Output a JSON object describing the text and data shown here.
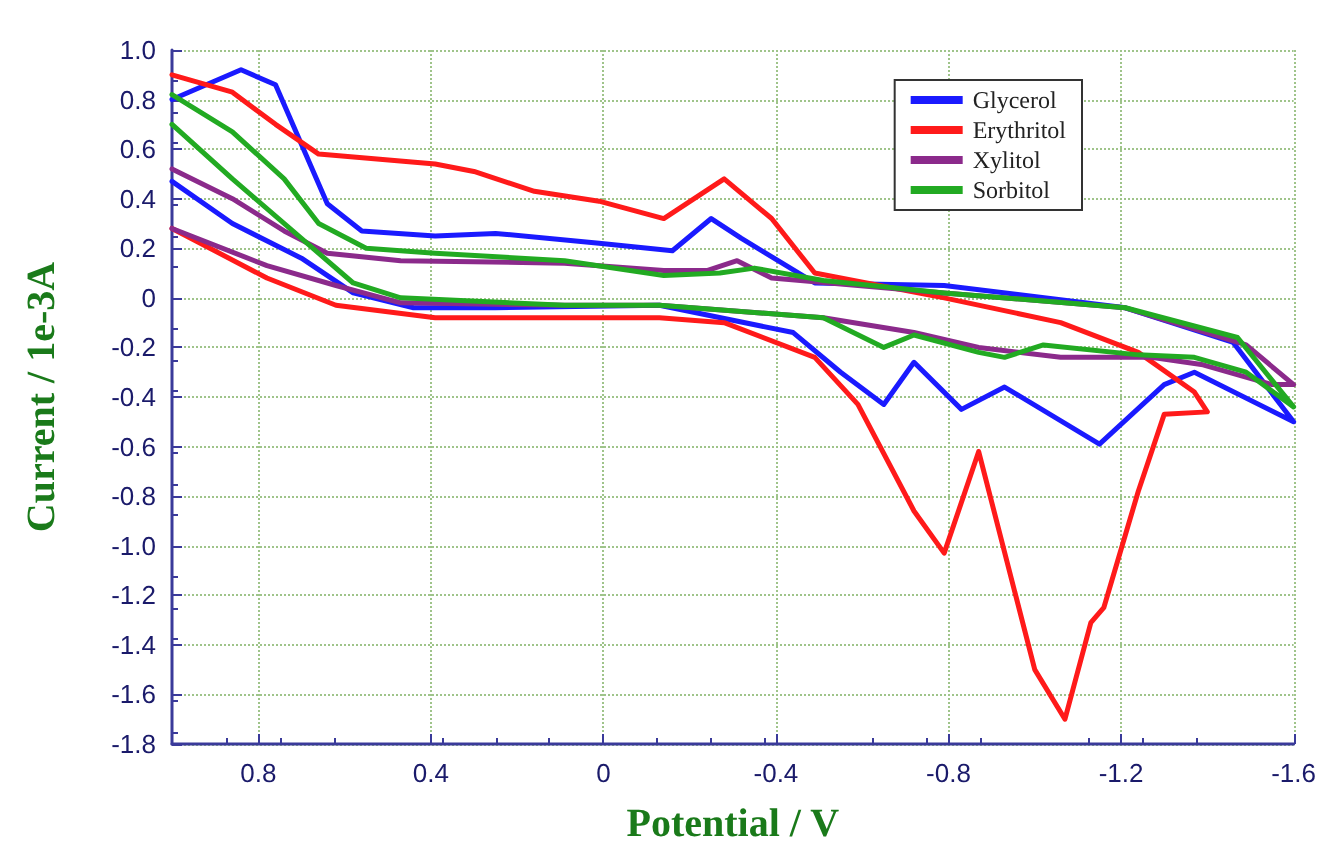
{
  "chart_data": {
    "type": "line",
    "xlabel": "Potential / V",
    "ylabel": "Current / 1e-3A",
    "xlim": [
      1.0,
      -1.6
    ],
    "xticks": [
      0.8,
      0.4,
      0,
      -0.4,
      -0.8,
      -1.2,
      -1.6
    ],
    "ylim": [
      -1.8,
      1.0
    ],
    "yticks": [
      {
        "value": -1.8,
        "label": "-1.8"
      },
      {
        "value": -1.6,
        "label": "-1.6"
      },
      {
        "value": -1.4,
        "label": "-1.4"
      },
      {
        "value": -1.2,
        "label": "-1.2"
      },
      {
        "value": -1.0,
        "label": "-1.0"
      },
      {
        "value": -0.8,
        "label": "-0.8"
      },
      {
        "value": -0.6,
        "label": "-0.6"
      },
      {
        "value": -0.4,
        "label": "-0.4"
      },
      {
        "value": -0.2,
        "label": "-0.2"
      },
      {
        "value": 0,
        "label": "0"
      },
      {
        "value": 0.2,
        "label": "0.2"
      },
      {
        "value": 0.4,
        "label": "0.4"
      },
      {
        "value": 0.6,
        "label": "0.6"
      },
      {
        "value": 0.8,
        "label": "0.8"
      },
      {
        "value": 1.0,
        "label": "1.0"
      }
    ],
    "grid": true,
    "legend": "top right",
    "marker": "none",
    "line_style": "solid",
    "series": [
      {
        "name": "Glycerol",
        "color": "#1a1aff",
        "x": [
          1.0,
          0.84,
          0.76,
          0.7,
          0.64,
          0.56,
          0.39,
          0.25,
          0.01,
          -0.16,
          -0.25,
          -0.32,
          -0.49,
          -0.79,
          -1.21,
          -1.46,
          -1.6,
          -1.37,
          -1.3,
          -1.15,
          -0.93,
          -0.83,
          -0.72,
          -0.65,
          -0.55,
          -0.44,
          -0.13,
          0.25,
          0.44,
          0.58,
          0.7,
          0.86,
          1.0
        ],
        "values": [
          0.8,
          0.92,
          0.86,
          0.62,
          0.38,
          0.27,
          0.25,
          0.26,
          0.22,
          0.19,
          0.32,
          0.24,
          0.06,
          0.05,
          -0.04,
          -0.18,
          -0.5,
          -0.3,
          -0.35,
          -0.59,
          -0.36,
          -0.45,
          -0.26,
          -0.43,
          -0.3,
          -0.14,
          -0.03,
          -0.04,
          -0.04,
          0.02,
          0.16,
          0.3,
          0.47
        ]
      },
      {
        "name": "Erythritol",
        "color": "#ff1a1a",
        "x": [
          1.0,
          0.86,
          0.76,
          0.66,
          0.39,
          0.3,
          0.16,
          0.01,
          -0.14,
          -0.28,
          -0.39,
          -0.49,
          -0.79,
          -1.06,
          -1.24,
          -1.37,
          -1.4,
          -1.3,
          -1.24,
          -1.16,
          -1.13,
          -1.07,
          -1.0,
          -0.87,
          -0.79,
          -0.72,
          -0.59,
          -0.49,
          -0.28,
          -0.13,
          0.0,
          0.39,
          0.62,
          0.78,
          1.0
        ],
        "values": [
          0.9,
          0.83,
          0.7,
          0.58,
          0.54,
          0.51,
          0.43,
          0.39,
          0.32,
          0.48,
          0.32,
          0.1,
          0.0,
          -0.1,
          -0.22,
          -0.38,
          -0.46,
          -0.47,
          -0.78,
          -1.25,
          -1.31,
          -1.7,
          -1.5,
          -0.62,
          -1.03,
          -0.86,
          -0.43,
          -0.24,
          -0.1,
          -0.08,
          -0.08,
          -0.08,
          -0.03,
          0.08,
          0.28
        ]
      },
      {
        "name": "Xylitol",
        "color": "#8b2a8b",
        "x": [
          1.0,
          0.86,
          0.74,
          0.64,
          0.47,
          0.09,
          -0.14,
          -0.24,
          -0.31,
          -0.39,
          -0.79,
          -1.21,
          -1.49,
          -1.6,
          -1.55,
          -1.39,
          -1.27,
          -1.06,
          -0.87,
          -0.72,
          -0.51,
          -0.13,
          0.09,
          0.47,
          0.62,
          0.78,
          1.0
        ],
        "values": [
          0.52,
          0.4,
          0.27,
          0.18,
          0.15,
          0.14,
          0.11,
          0.11,
          0.15,
          0.08,
          0.02,
          -0.04,
          -0.19,
          -0.35,
          -0.35,
          -0.27,
          -0.24,
          -0.24,
          -0.2,
          -0.14,
          -0.08,
          -0.03,
          -0.03,
          -0.02,
          0.05,
          0.13,
          0.28
        ]
      },
      {
        "name": "Sorbitol",
        "color": "#22aa22",
        "x": [
          1.0,
          0.86,
          0.74,
          0.66,
          0.55,
          0.39,
          0.09,
          -0.14,
          -0.27,
          -0.35,
          -0.51,
          -0.79,
          -1.21,
          -1.47,
          -1.6,
          -1.49,
          -1.37,
          -1.24,
          -1.02,
          -0.93,
          -0.87,
          -0.72,
          -0.65,
          -0.51,
          -0.13,
          0.09,
          0.47,
          0.58,
          0.7,
          0.86,
          1.0
        ],
        "values": [
          0.82,
          0.67,
          0.48,
          0.3,
          0.2,
          0.18,
          0.15,
          0.09,
          0.1,
          0.12,
          0.07,
          0.02,
          -0.04,
          -0.16,
          -0.44,
          -0.3,
          -0.24,
          -0.23,
          -0.19,
          -0.24,
          -0.22,
          -0.15,
          -0.2,
          -0.08,
          -0.03,
          -0.03,
          0.0,
          0.06,
          0.24,
          0.48,
          0.7
        ]
      }
    ]
  }
}
